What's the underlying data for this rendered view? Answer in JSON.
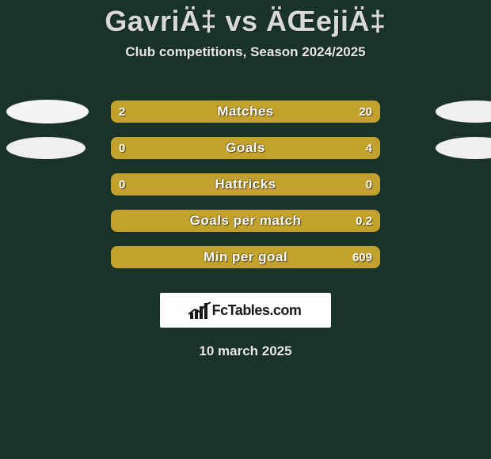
{
  "background_color": "#1a3328",
  "header": {
    "title": "GavriÄ‡ vs ÄŒejiÄ‡",
    "title_color": "#d9d9d9",
    "title_fontsize": 36,
    "subtitle": "Club competitions, Season 2024/2025",
    "subtitle_color": "#e8e8e8",
    "subtitle_fontsize": 17
  },
  "bar_style": {
    "track_color": "#9e8126",
    "fill_color": "#c2a12d",
    "track_width": 340,
    "track_height": 28,
    "border_radius": 8,
    "label_color": "#ffffff",
    "label_fontsize": 17,
    "value_color": "#ffffff",
    "value_fontsize": 15
  },
  "markers": {
    "left": [
      {
        "color": "#f5f5f5",
        "width": 104,
        "height": 30
      },
      {
        "color": "#efefef",
        "width": 100,
        "height": 28
      }
    ],
    "right": [
      {
        "color": "#efefef",
        "width": 100,
        "height": 28
      },
      {
        "color": "#efefef",
        "width": 100,
        "height": 28
      }
    ]
  },
  "stats": [
    {
      "label": "Matches",
      "left_value": "2",
      "right_value": "20",
      "left_pct": 9,
      "right_pct": 91,
      "show_left_marker": true,
      "show_right_marker": true,
      "left_marker_idx": 0,
      "right_marker_idx": 0
    },
    {
      "label": "Goals",
      "left_value": "0",
      "right_value": "4",
      "left_pct": 0,
      "right_pct": 100,
      "show_left_marker": true,
      "show_right_marker": true,
      "left_marker_idx": 1,
      "right_marker_idx": 1
    },
    {
      "label": "Hattricks",
      "left_value": "0",
      "right_value": "0",
      "left_pct": 50,
      "right_pct": 50,
      "show_left_marker": false,
      "show_right_marker": false
    },
    {
      "label": "Goals per match",
      "left_value": "",
      "right_value": "0.2",
      "left_pct": 0,
      "right_pct": 100,
      "show_left_marker": false,
      "show_right_marker": false
    },
    {
      "label": "Min per goal",
      "left_value": "",
      "right_value": "609",
      "left_pct": 0,
      "right_pct": 100,
      "show_left_marker": false,
      "show_right_marker": false
    }
  ],
  "site_badge": {
    "text": "FcTables.com",
    "background": "#fdfdfd",
    "text_color": "#1a1a1a",
    "icon_color": "#1a1a1a"
  },
  "date": "10 march 2025"
}
